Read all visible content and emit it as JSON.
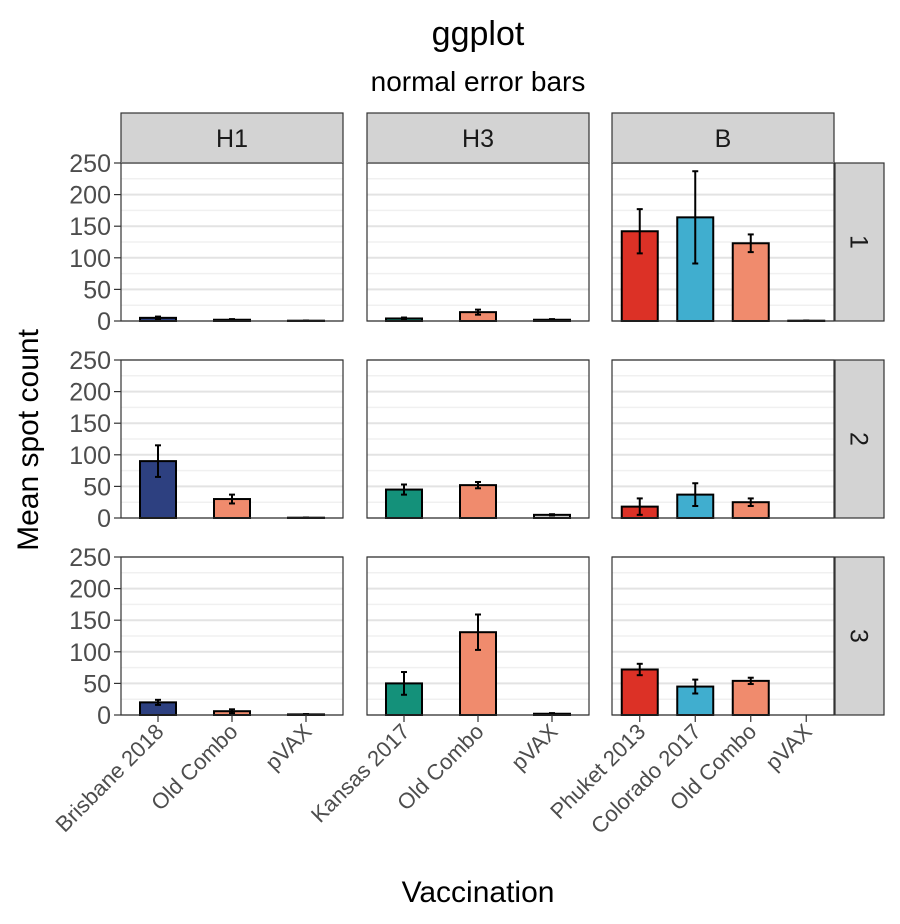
{
  "chart_data": {
    "type": "bar",
    "title": "ggplot",
    "subtitle": "normal error bars",
    "xlabel": "Vaccination",
    "ylabel": "Mean spot count",
    "ylim": [
      0,
      250
    ],
    "yticks": [
      0,
      50,
      100,
      150,
      200,
      250
    ],
    "grid": true,
    "facet_columns": [
      "H1",
      "H3",
      "B"
    ],
    "facet_rows": [
      "1",
      "2",
      "3"
    ],
    "colors": {
      "Brisbane 2018": "#2d4080",
      "Kansas 2017": "#14917a",
      "Phuket 2013": "#dc3126",
      "Colorado 2017": "#40aecf",
      "Old Combo": "#f08b6d",
      "pVAX": "#c8c8c8"
    },
    "panels": [
      {
        "column": "H1",
        "categories": [
          "Brisbane 2018",
          "Old Combo",
          "pVAX"
        ],
        "rows": [
          {
            "row": "1",
            "values": [
              5,
              2,
              0.5
            ],
            "errors": [
              2,
              1,
              0.3
            ]
          },
          {
            "row": "2",
            "values": [
              90,
              30,
              0.5
            ],
            "errors": [
              25,
              7,
              0.3
            ]
          },
          {
            "row": "3",
            "values": [
              20,
              6,
              1
            ],
            "errors": [
              4,
              3,
              0.5
            ]
          }
        ]
      },
      {
        "column": "H3",
        "categories": [
          "Kansas 2017",
          "Old Combo",
          "pVAX"
        ],
        "rows": [
          {
            "row": "1",
            "values": [
              4,
              14,
              2
            ],
            "errors": [
              1.5,
              4,
              1
            ]
          },
          {
            "row": "2",
            "values": [
              45,
              52,
              5
            ],
            "errors": [
              8,
              5,
              1
            ]
          },
          {
            "row": "3",
            "values": [
              50,
              131,
              2
            ],
            "errors": [
              18,
              28,
              1
            ]
          }
        ]
      },
      {
        "column": "B",
        "categories": [
          "Phuket 2013",
          "Colorado 2017",
          "Old Combo",
          "pVAX"
        ],
        "rows": [
          {
            "row": "1",
            "values": [
              142,
              164,
              123,
              0.5
            ],
            "errors": [
              35,
              73,
              14,
              0.3
            ]
          },
          {
            "row": "2",
            "values": [
              18,
              37,
              25,
              0
            ],
            "errors": [
              13,
              18,
              6,
              0
            ]
          },
          {
            "row": "3",
            "values": [
              72,
              45,
              54,
              0
            ],
            "errors": [
              9,
              11,
              5,
              0
            ]
          }
        ]
      }
    ]
  }
}
